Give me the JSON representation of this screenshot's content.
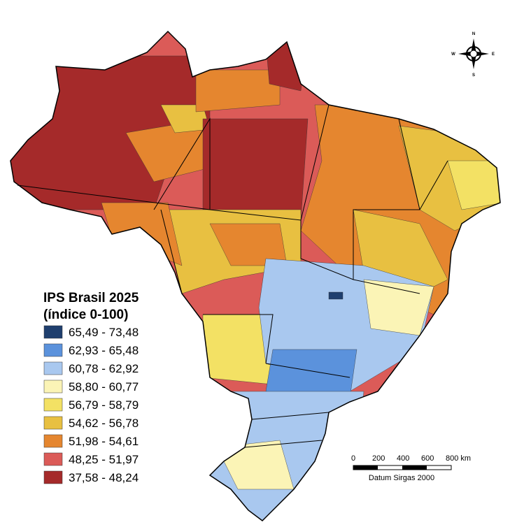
{
  "title": "IPS Brasil 2025",
  "subtitle": "(índice 0-100)",
  "legend": [
    {
      "label": "65,49 - 73,48",
      "color": "#1f3f6e"
    },
    {
      "label": "62,93 - 65,48",
      "color": "#5b92dc"
    },
    {
      "label": "60,78 - 62,92",
      "color": "#a9c8ef"
    },
    {
      "label": "58,80 - 60,77",
      "color": "#fbf4b6"
    },
    {
      "label": "56,79 - 58,79",
      "color": "#f3e164"
    },
    {
      "label": "54,62 - 56,78",
      "color": "#e8c041"
    },
    {
      "label": "51,98 - 54,61",
      "color": "#e5862f"
    },
    {
      "label": "48,25 - 51,97",
      "color": "#db5b58"
    },
    {
      "label": "37,58 - 48,24",
      "color": "#a52a2a"
    }
  ],
  "scale_bar": {
    "labels": [
      "0",
      "200",
      "400",
      "600",
      "800 km"
    ],
    "datum": "Datum Sirgas 2000"
  },
  "compass": {
    "n": "N",
    "s": "S",
    "e": "E",
    "w": "W"
  }
}
